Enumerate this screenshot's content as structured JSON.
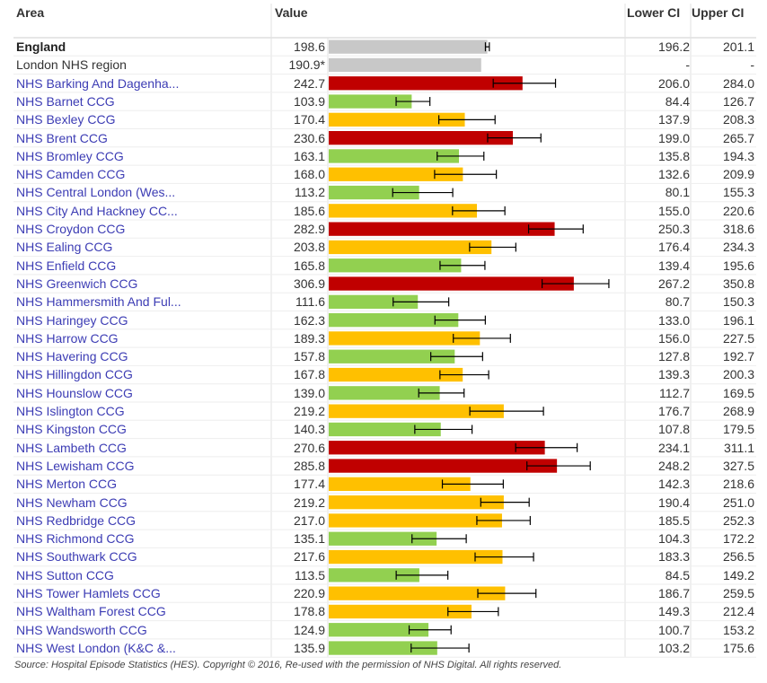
{
  "chart_data": {
    "type": "bar",
    "orientation": "horizontal",
    "headers": [
      "Area",
      "Value",
      "Lower CI",
      "Upper CI"
    ],
    "categories": [
      "England",
      "London NHS region",
      "NHS Barking And Dagenha...",
      "NHS Barnet CCG",
      "NHS Bexley CCG",
      "NHS Brent CCG",
      "NHS Bromley CCG",
      "NHS Camden CCG",
      "NHS Central London (Wes...",
      "NHS City And Hackney CC...",
      "NHS Croydon CCG",
      "NHS Ealing CCG",
      "NHS Enfield CCG",
      "NHS Greenwich CCG",
      "NHS Hammersmith And Ful...",
      "NHS Haringey CCG",
      "NHS Harrow CCG",
      "NHS Havering CCG",
      "NHS Hillingdon CCG",
      "NHS Hounslow CCG",
      "NHS Islington CCG",
      "NHS Kingston CCG",
      "NHS Lambeth CCG",
      "NHS Lewisham CCG",
      "NHS Merton CCG",
      "NHS Newham CCG",
      "NHS Redbridge CCG",
      "NHS Richmond CCG",
      "NHS Southwark CCG",
      "NHS Sutton CCG",
      "NHS Tower Hamlets CCG",
      "NHS Waltham Forest CCG",
      "NHS Wandsworth CCG",
      "NHS West London (K&C &..."
    ],
    "values": [
      198.6,
      190.9,
      242.7,
      103.9,
      170.4,
      230.6,
      163.1,
      168.0,
      113.2,
      185.6,
      282.9,
      203.8,
      165.8,
      306.9,
      111.6,
      162.3,
      189.3,
      157.8,
      167.8,
      139.0,
      219.2,
      140.3,
      270.6,
      285.8,
      177.4,
      219.2,
      217.0,
      135.1,
      217.6,
      113.5,
      220.9,
      178.8,
      124.9,
      135.9
    ],
    "value_labels": [
      "198.6",
      "190.9*",
      "242.7",
      "103.9",
      "170.4",
      "230.6",
      "163.1",
      "168.0",
      "113.2",
      "185.6",
      "282.9",
      "203.8",
      "165.8",
      "306.9",
      "111.6",
      "162.3",
      "189.3",
      "157.8",
      "167.8",
      "139.0",
      "219.2",
      "140.3",
      "270.6",
      "285.8",
      "177.4",
      "219.2",
      "217.0",
      "135.1",
      "217.6",
      "113.5",
      "220.9",
      "178.8",
      "124.9",
      "135.9"
    ],
    "lower_ci": [
      196.2,
      null,
      206.0,
      84.4,
      137.9,
      199.0,
      135.8,
      132.6,
      80.1,
      155.0,
      250.3,
      176.4,
      139.4,
      267.2,
      80.7,
      133.0,
      156.0,
      127.8,
      139.3,
      112.7,
      176.7,
      107.8,
      234.1,
      248.2,
      142.3,
      190.4,
      185.5,
      104.3,
      183.3,
      84.5,
      186.7,
      149.3,
      100.7,
      103.2
    ],
    "lower_ci_labels": [
      "196.2",
      "-",
      "206.0",
      "84.4",
      "137.9",
      "199.0",
      "135.8",
      "132.6",
      "80.1",
      "155.0",
      "250.3",
      "176.4",
      "139.4",
      "267.2",
      "80.7",
      "133.0",
      "156.0",
      "127.8",
      "139.3",
      "112.7",
      "176.7",
      "107.8",
      "234.1",
      "248.2",
      "142.3",
      "190.4",
      "185.5",
      "104.3",
      "183.3",
      "84.5",
      "186.7",
      "149.3",
      "100.7",
      "103.2"
    ],
    "upper_ci": [
      201.1,
      null,
      284.0,
      126.7,
      208.3,
      265.7,
      194.3,
      209.9,
      155.3,
      220.6,
      318.6,
      234.3,
      195.6,
      350.8,
      150.3,
      196.1,
      227.5,
      192.7,
      200.3,
      169.5,
      268.9,
      179.5,
      311.1,
      327.5,
      218.6,
      251.0,
      252.3,
      172.2,
      256.5,
      149.2,
      259.5,
      212.4,
      153.2,
      175.6
    ],
    "upper_ci_labels": [
      "201.1",
      "-",
      "284.0",
      "126.7",
      "208.3",
      "265.7",
      "194.3",
      "209.9",
      "155.3",
      "220.6",
      "318.6",
      "234.3",
      "195.6",
      "350.8",
      "150.3",
      "196.1",
      "227.5",
      "192.7",
      "200.3",
      "169.5",
      "268.9",
      "179.5",
      "311.1",
      "327.5",
      "218.6",
      "251.0",
      "252.3",
      "172.2",
      "256.5",
      "149.2",
      "259.5",
      "212.4",
      "153.2",
      "175.6"
    ],
    "colors": [
      "#c8c8c8",
      "#c8c8c8",
      "#c00000",
      "#92d050",
      "#ffc000",
      "#c00000",
      "#92d050",
      "#ffc000",
      "#92d050",
      "#ffc000",
      "#c00000",
      "#ffc000",
      "#92d050",
      "#c00000",
      "#92d050",
      "#92d050",
      "#ffc000",
      "#92d050",
      "#ffc000",
      "#92d050",
      "#ffc000",
      "#92d050",
      "#c00000",
      "#c00000",
      "#ffc000",
      "#ffc000",
      "#ffc000",
      "#92d050",
      "#ffc000",
      "#92d050",
      "#ffc000",
      "#ffc000",
      "#92d050",
      "#92d050"
    ],
    "xlim": [
      0,
      370
    ],
    "source": "Source: Hospital Episode Statistics (HES). Copyright © 2016, Re-used with the permission of NHS Digital. All rights reserved."
  }
}
